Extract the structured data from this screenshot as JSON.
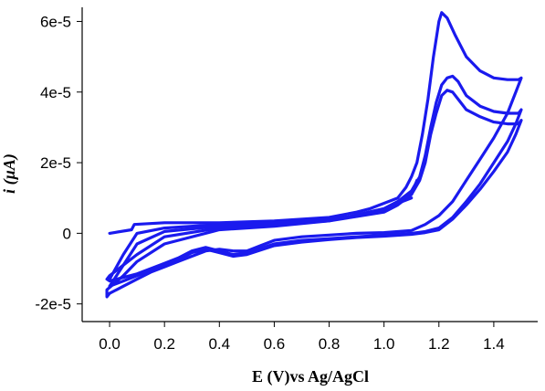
{
  "chart_data": {
    "type": "line",
    "title": "",
    "xlabel": "E (V)vs Ag/AgCl",
    "ylabel": "i (µA)",
    "xlim": [
      -0.1,
      1.56
    ],
    "ylim": [
      -2.5e-05,
      6.4e-05
    ],
    "x_ticks": [
      0.0,
      0.2,
      0.4,
      0.6,
      0.8,
      1.0,
      1.2,
      1.4
    ],
    "x_tick_labels": [
      "0.0",
      "0.2",
      "0.4",
      "0.6",
      "0.8",
      "1.0",
      "1.2",
      "1.4"
    ],
    "y_ticks": [
      -2e-05,
      0,
      2e-05,
      4e-05,
      6e-05
    ],
    "y_tick_labels": [
      "-2e-5",
      "0",
      "2e-5",
      "4e-5",
      "6e-5"
    ],
    "grid": false,
    "legend": "none",
    "line_color": "#1a1aee",
    "series": [
      {
        "x": [
          0.0,
          0.08,
          0.09,
          0.2,
          0.4,
          0.6,
          0.8,
          0.9,
          0.95,
          1.0,
          1.05,
          1.08,
          1.1,
          1.12,
          1.14,
          1.16,
          1.18,
          1.2,
          1.21,
          1.23,
          1.26,
          1.3,
          1.35,
          1.4,
          1.45,
          1.49,
          1.5,
          1.48,
          1.45,
          1.4,
          1.35,
          1.3,
          1.25,
          1.2,
          1.15,
          1.1,
          1.0,
          0.9,
          0.8,
          0.7,
          0.6,
          0.55,
          0.5,
          0.45,
          0.4,
          0.35,
          0.3,
          0.25,
          0.2,
          0.15,
          0.1,
          0.05,
          0.0,
          -0.01,
          -0.01,
          0.02,
          0.05,
          0.1,
          0.2,
          0.4,
          0.6,
          0.8,
          1.0,
          1.05,
          1.1,
          1.12
        ],
        "y": [
          0.0,
          1e-06,
          2.5e-06,
          3e-06,
          3e-06,
          3.5e-06,
          4.5e-06,
          6e-06,
          7e-06,
          8.5e-06,
          1e-05,
          1.3e-05,
          1.6e-05,
          2e-05,
          2.8e-05,
          3.8e-05,
          5e-05,
          6e-05,
          6.25e-05,
          6.1e-05,
          5.6e-05,
          5e-05,
          4.6e-05,
          4.4e-05,
          4.35e-05,
          4.35e-05,
          4.4e-05,
          4e-05,
          3.4e-05,
          2.7e-05,
          2.1e-05,
          1.5e-05,
          9e-06,
          5e-06,
          2.5e-06,
          8e-07,
          2e-07,
          0.0,
          -5e-07,
          -1e-06,
          -2e-06,
          -3.5e-06,
          -5e-06,
          -5e-06,
          -4.5e-06,
          -5e-06,
          -6.5e-06,
          -8e-06,
          -9.5e-06,
          -1.1e-05,
          -1.3e-05,
          -1.5e-05,
          -1.7e-05,
          -1.8e-05,
          -1.6e-05,
          -1.4e-05,
          -1.2e-05,
          -8e-06,
          -3e-06,
          1e-06,
          2e-06,
          3.5e-06,
          6e-06,
          8e-06,
          1.1e-05,
          1.5e-05
        ]
      },
      {
        "x": [
          0.0,
          0.05,
          0.1,
          0.2,
          0.4,
          0.6,
          0.8,
          0.9,
          1.0,
          1.05,
          1.1,
          1.13,
          1.15,
          1.17,
          1.19,
          1.21,
          1.23,
          1.25,
          1.27,
          1.3,
          1.35,
          1.4,
          1.45,
          1.49,
          1.5,
          1.48,
          1.45,
          1.4,
          1.35,
          1.3,
          1.25,
          1.2,
          1.15,
          1.1,
          1.0,
          0.9,
          0.8,
          0.7,
          0.6,
          0.5,
          0.45,
          0.4,
          0.35,
          0.3,
          0.25,
          0.2,
          0.15,
          0.1,
          0.05,
          0.0,
          -0.01,
          0.0,
          0.05,
          0.1,
          0.2,
          0.4,
          0.6,
          0.8,
          1.0,
          1.1
        ],
        "y": [
          -1.3e-05,
          -6e-06,
          0.0,
          1.5e-06,
          2.5e-06,
          3e-06,
          4e-06,
          5e-06,
          7e-06,
          9e-06,
          1.2e-05,
          1.6e-05,
          2.2e-05,
          3e-05,
          3.7e-05,
          4.2e-05,
          4.4e-05,
          4.45e-05,
          4.3e-05,
          3.9e-05,
          3.6e-05,
          3.45e-05,
          3.4e-05,
          3.4e-05,
          3.5e-05,
          3.1e-05,
          2.6e-05,
          2e-05,
          1.4e-05,
          9e-06,
          4.5e-06,
          1.5e-06,
          5e-07,
          0.0,
          -5e-07,
          -1e-06,
          -1.5e-06,
          -2e-06,
          -3e-06,
          -5.5e-06,
          -6e-06,
          -5e-06,
          -4e-06,
          -5e-06,
          -7e-06,
          -8.5e-06,
          -1e-05,
          -1.15e-05,
          -1.25e-05,
          -1.35e-05,
          -1.3e-05,
          -1.2e-05,
          -9e-06,
          -6e-06,
          -1e-06,
          1.5e-06,
          2.5e-06,
          3.5e-06,
          7e-06,
          1e-05
        ]
      },
      {
        "x": [
          0.0,
          0.05,
          0.1,
          0.2,
          0.4,
          0.6,
          0.8,
          0.9,
          1.0,
          1.05,
          1.1,
          1.13,
          1.15,
          1.17,
          1.19,
          1.21,
          1.23,
          1.25,
          1.27,
          1.3,
          1.35,
          1.4,
          1.45,
          1.49,
          1.5,
          1.48,
          1.45,
          1.4,
          1.35,
          1.3,
          1.25,
          1.2,
          1.15,
          1.1,
          1.0,
          0.9,
          0.8,
          0.7,
          0.6,
          0.5,
          0.45,
          0.4,
          0.35,
          0.3,
          0.25,
          0.2,
          0.15,
          0.1,
          0.05,
          0.0
        ],
        "y": [
          -1.5e-05,
          -9e-06,
          -3e-06,
          5e-07,
          2e-06,
          2.8e-06,
          3.8e-06,
          4.8e-06,
          6.5e-06,
          8.5e-06,
          1.1e-05,
          1.5e-05,
          2e-05,
          2.8e-05,
          3.4e-05,
          3.9e-05,
          4.05e-05,
          4e-05,
          3.8e-05,
          3.5e-05,
          3.3e-05,
          3.15e-05,
          3.1e-05,
          3.1e-05,
          3.2e-05,
          2.8e-05,
          2.3e-05,
          1.75e-05,
          1.25e-05,
          8e-06,
          4e-06,
          1e-06,
          2e-07,
          -3e-07,
          -8e-07,
          -1.2e-06,
          -1.8e-06,
          -2.5e-06,
          -3.5e-06,
          -6e-06,
          -6.5e-06,
          -5.5e-06,
          -4.5e-06,
          -5.5e-06,
          -7.5e-06,
          -9e-06,
          -1.05e-05,
          -1.2e-05,
          -1.35e-05,
          -1.5e-05
        ]
      }
    ]
  }
}
